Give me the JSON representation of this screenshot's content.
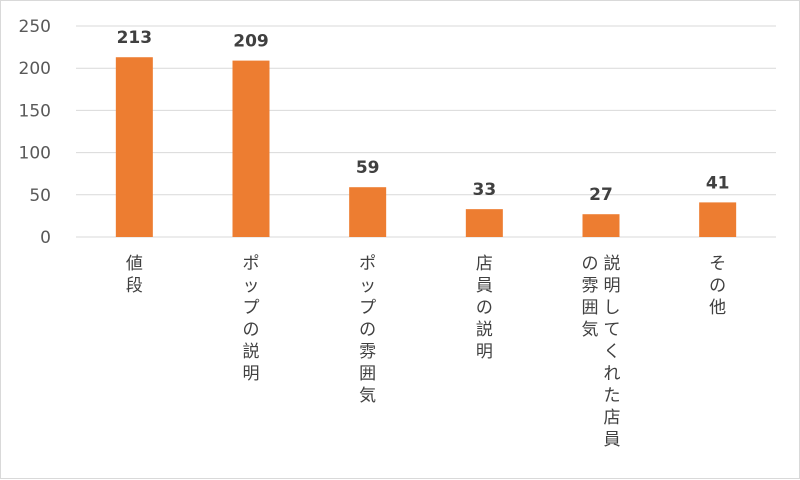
{
  "chart_data": {
    "type": "bar",
    "categories": [
      "値段",
      "ポップの説明",
      "ポップの雰囲気",
      "店員の説明",
      "説明してくれた店員の雰囲気",
      "その他"
    ],
    "category_label_lines": [
      [
        "値段"
      ],
      [
        "ポップの説明"
      ],
      [
        "ポップの雰囲気"
      ],
      [
        "店員の説明"
      ],
      [
        "説明してくれた店員",
        "の雰囲気"
      ],
      [
        "その他"
      ]
    ],
    "values": [
      213,
      209,
      59,
      33,
      27,
      41
    ],
    "ylim": [
      0,
      250
    ],
    "yticks": [
      0,
      50,
      100,
      150,
      200,
      250
    ],
    "grid": true,
    "legend": "none",
    "bar_color": "#ed7d31",
    "grid_color": "#d9d9d9"
  }
}
